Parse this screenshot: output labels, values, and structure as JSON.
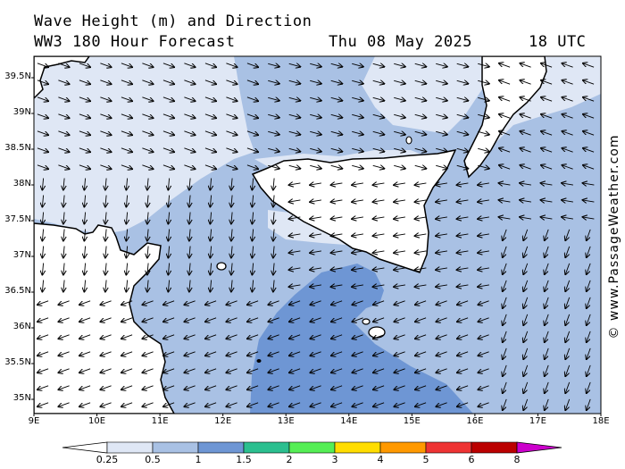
{
  "header": {
    "title_line1": "Wave Height (m) and Direction",
    "title_line2": "WW3 180 Hour Forecast",
    "date": "Thu 08 May 2025",
    "time": "18 UTC"
  },
  "credit": "© www.PassageWeather.com",
  "axes": {
    "lat_labels": [
      "39.5N",
      "39N",
      "38.5N",
      "38N",
      "37.5N",
      "37N",
      "36.5N",
      "36N",
      "35.5N",
      "35N"
    ],
    "lat_values": [
      39.5,
      39,
      38.5,
      38,
      37.5,
      37,
      36.5,
      36,
      35.5,
      35
    ],
    "lon_labels": [
      "9E",
      "10E",
      "11E",
      "12E",
      "13E",
      "14E",
      "15E",
      "16E",
      "17E",
      "18E"
    ],
    "lon_values": [
      9,
      10,
      11,
      12,
      13,
      14,
      15,
      16,
      17,
      18
    ],
    "lon_range": [
      9,
      18
    ],
    "lat_range": [
      34.8,
      39.8
    ]
  },
  "colorbar": {
    "labels": [
      "0.25",
      "0.5",
      "1",
      "1.5",
      "2",
      "3",
      "4",
      "5",
      "6",
      "8"
    ],
    "colors": [
      "#dfe7f5",
      "#a9c1e4",
      "#6e96d4",
      "#2bbf8f",
      "#55ee55",
      "#ffdd00",
      "#ff9900",
      "#ee3333",
      "#bb0000",
      "#cc00cc"
    ]
  },
  "colors": {
    "sea_low": "#dfe7f5",
    "sea_mid": "#a9c1e4",
    "sea_high": "#6e96d4",
    "land": "#ffffff",
    "coast": "#000000"
  }
}
